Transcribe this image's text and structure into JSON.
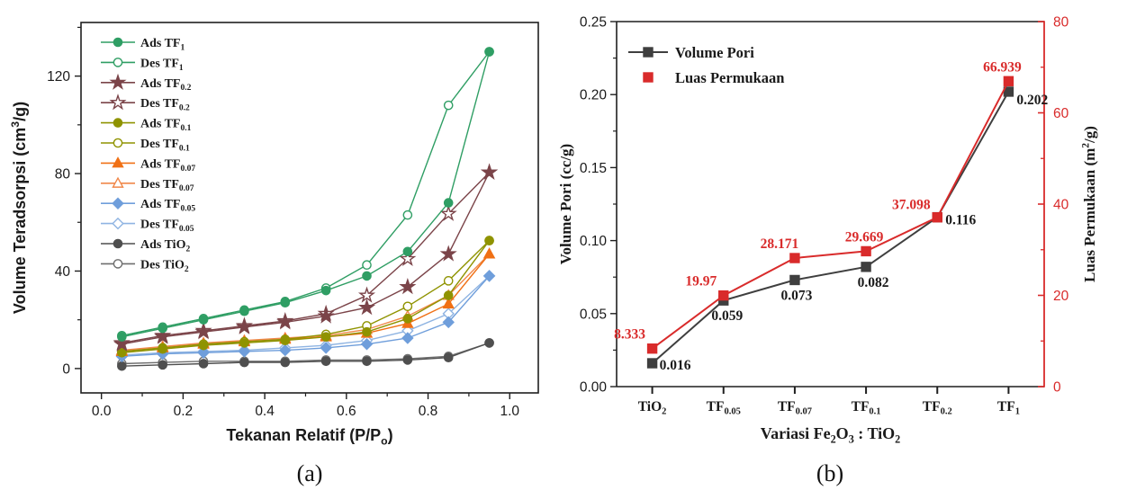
{
  "figure": {
    "captions": {
      "a": "(a)",
      "b": "(b)"
    },
    "text_color": "#1a1a1a",
    "background": "#ffffff"
  },
  "chart_data": [
    {
      "id": "a",
      "type": "line",
      "title": "",
      "xlabel": "Tekanan Relatif (P/P_{o})",
      "ylabel": "Volume Teradsorpsi (cm^{3}/g)",
      "xlim": [
        -0.05,
        1.07
      ],
      "ylim": [
        -10,
        142
      ],
      "xticks": [
        0.0,
        0.2,
        0.4,
        0.6,
        0.8,
        1.0
      ],
      "xminor": [
        0.1,
        0.3,
        0.5,
        0.7,
        0.9
      ],
      "yticks": [
        0,
        40,
        80,
        120
      ],
      "yminor": [
        20,
        60,
        100,
        140
      ],
      "grid": false,
      "legend_position": "top-left-inside",
      "x": [
        0.05,
        0.15,
        0.25,
        0.35,
        0.45,
        0.55,
        0.65,
        0.75,
        0.85,
        0.95
      ],
      "series": [
        {
          "name": "Ads TF_{1}",
          "color": "#2f9e64",
          "marker": "circle",
          "fill": "filled",
          "values": [
            13,
            16.5,
            20,
            23.5,
            27,
            32,
            38,
            48,
            68,
            130
          ]
        },
        {
          "name": "Des TF_{1}",
          "color": "#2f9e64",
          "marker": "circle",
          "fill": "open",
          "values": [
            13.5,
            17,
            20.5,
            24,
            27.5,
            33,
            42.5,
            63,
            108,
            130
          ]
        },
        {
          "name": "Ads TF_{0.2}",
          "color": "#7b4449",
          "marker": "star",
          "fill": "filled",
          "values": [
            10,
            13,
            15,
            17,
            19,
            21.5,
            25,
            33.5,
            47,
            80.5
          ]
        },
        {
          "name": "Des TF_{0.2}",
          "color": "#7b4449",
          "marker": "star",
          "fill": "open",
          "values": [
            10.5,
            13.5,
            15.5,
            17.5,
            19.5,
            22.5,
            30,
            45,
            63.5,
            80.5
          ]
        },
        {
          "name": "Ads TF_{0.1}",
          "color": "#8f9300",
          "marker": "circle",
          "fill": "filled",
          "values": [
            6.5,
            8,
            9.5,
            10.5,
            11.5,
            13,
            15,
            20.5,
            30,
            52.5
          ]
        },
        {
          "name": "Des TF_{0.1}",
          "color": "#8f9300",
          "marker": "circle",
          "fill": "open",
          "values": [
            7,
            8.5,
            10,
            11,
            12,
            14,
            17.5,
            25.5,
            36,
            52.5
          ]
        },
        {
          "name": "Ads TF_{0.07}",
          "color": "#f07015",
          "marker": "triangle",
          "fill": "filled",
          "values": [
            7,
            8.5,
            10,
            11,
            12,
            13,
            14.5,
            18.5,
            26.5,
            47
          ]
        },
        {
          "name": "Des TF_{0.07}",
          "color": "#f0884a",
          "marker": "triangle",
          "fill": "open",
          "values": [
            7.5,
            9,
            10.5,
            11.5,
            12.5,
            13.5,
            16,
            21.5,
            30,
            47
          ]
        },
        {
          "name": "Ads TF_{0.05}",
          "color": "#6f9edb",
          "marker": "diamond",
          "fill": "filled",
          "values": [
            5,
            6,
            6.5,
            7,
            7.5,
            8.5,
            10,
            12.5,
            19,
            38
          ]
        },
        {
          "name": "Des TF_{0.05}",
          "color": "#8fb4e2",
          "marker": "diamond",
          "fill": "open",
          "values": [
            5.5,
            6.5,
            7,
            7.5,
            8.5,
            9.5,
            11.5,
            15.5,
            22.5,
            38
          ]
        },
        {
          "name": "Ads TiO_{2}",
          "color": "#4f4f4f",
          "marker": "circle",
          "fill": "filled",
          "values": [
            1,
            1.5,
            2,
            2.5,
            2.5,
            3,
            3,
            3.5,
            4.5,
            10.5
          ]
        },
        {
          "name": "Des TiO_{2}",
          "color": "#6e6e6e",
          "marker": "circle",
          "fill": "open",
          "values": [
            2,
            2.5,
            3,
            3,
            3,
            3.5,
            3.5,
            4,
            5,
            10.5
          ]
        }
      ]
    },
    {
      "id": "b",
      "type": "line-dual-axis",
      "title": "",
      "categories": [
        "TiO_{2}",
        "TF_{0.05}",
        "TF_{0.07}",
        "TF_{0.1}",
        "TF_{0.2}",
        "TF_{1}"
      ],
      "xlabel": "Variasi Fe_{2}O_{3} : TiO_{2}",
      "ylabel_left": "Volume Pori (cc/g)",
      "ylabel_right": "Luas Permukaan (m^{2}/g)",
      "ylim_left": [
        0,
        0.25
      ],
      "yticks_left": [
        0,
        0.05,
        0.1,
        0.15,
        0.2,
        0.25
      ],
      "ylim_right": [
        0,
        80
      ],
      "yticks_right": [
        0,
        20,
        40,
        60,
        80
      ],
      "axis_right_color": "#d92b2b",
      "grid": false,
      "legend_position": "top-left-inside",
      "series": [
        {
          "name": "Volume Pori",
          "axis": "left",
          "color": "#3f3f3f",
          "marker": "square",
          "fill": "filled",
          "legend_line": true,
          "values": [
            0.016,
            0.059,
            0.073,
            0.082,
            0.116,
            0.202
          ],
          "point_labels": [
            "0.016",
            "0.059",
            "0.073",
            "0.082",
            "0.116",
            "0.202"
          ],
          "label_color": "#1a1a1a",
          "label_offsets": [
            [
              8,
              7,
              "start"
            ],
            [
              4,
              22,
              "middle"
            ],
            [
              2,
              22,
              "middle"
            ],
            [
              8,
              22,
              "middle"
            ],
            [
              9,
              8,
              "start"
            ],
            [
              9,
              14,
              "start"
            ]
          ]
        },
        {
          "name": "Luas Permukaan",
          "axis": "right",
          "color": "#d92b2b",
          "marker": "square",
          "fill": "filled",
          "legend_line": false,
          "values": [
            8.333,
            19.97,
            28.171,
            29.669,
            37.098,
            66.939
          ],
          "point_labels": [
            "8.333",
            "19.97",
            "28.171",
            "29.669",
            "37.098",
            "66.939"
          ],
          "label_color": "#d92b2b",
          "label_offsets": [
            [
              -25,
              -11,
              "middle"
            ],
            [
              -25,
              -11,
              "middle"
            ],
            [
              -17,
              -11,
              "middle"
            ],
            [
              -2,
              -11,
              "middle"
            ],
            [
              -29,
              -9,
              "middle"
            ],
            [
              -7,
              -11,
              "middle"
            ]
          ]
        }
      ]
    }
  ]
}
